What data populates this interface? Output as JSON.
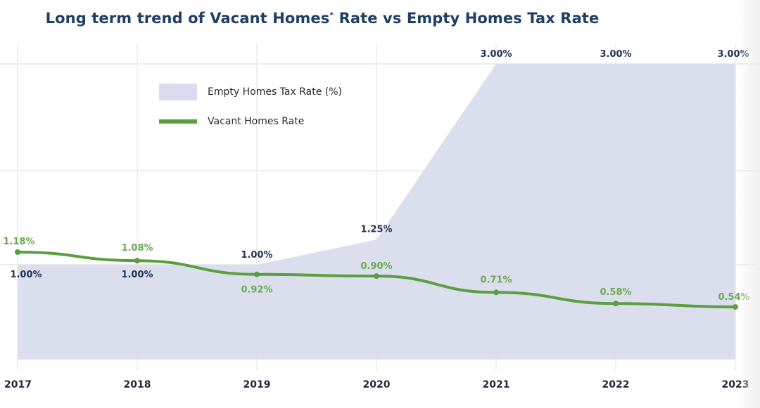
{
  "chart_data": {
    "type": "area+line",
    "title": "Long term trend of Vacant Homes* Rate vs Empty Homes Tax Rate",
    "title_main": "Long term trend of Vacant Homes",
    "title_mark": "*",
    "title_rest": " Rate vs Empty Homes Tax Rate",
    "xlabel": "",
    "ylabel": "",
    "categories": [
      "2017",
      "2018",
      "2019",
      "2020",
      "2021",
      "2022",
      "2023"
    ],
    "series": [
      {
        "name": "Empty Homes Tax Rate (%)",
        "kind": "area",
        "color": "#d9dcec",
        "label_color": "#1f3153",
        "values": [
          1.0,
          1.0,
          1.0,
          1.25,
          3.0,
          3.0,
          3.0
        ],
        "labels": [
          "1.00%",
          "1.00%",
          "1.00%",
          "1.25%",
          "3.00%",
          "3.00%",
          "3.00%"
        ],
        "ylim": [
          0,
          3
        ]
      },
      {
        "name": "Vacant Homes Rate",
        "kind": "line",
        "color": "#5a9e3e",
        "label_color": "#6aaa4f",
        "values": [
          1.18,
          1.08,
          0.92,
          0.9,
          0.71,
          0.58,
          0.54
        ],
        "labels": [
          "1.18%",
          "1.08%",
          "0.92%",
          "0.90%",
          "0.71%",
          "0.58%",
          "0.54%"
        ],
        "ylim": [
          0,
          3.5
        ]
      }
    ],
    "gridlines": {
      "horizontal": [
        1,
        2,
        3
      ],
      "vertical": true
    },
    "legend_position": "top-left"
  }
}
